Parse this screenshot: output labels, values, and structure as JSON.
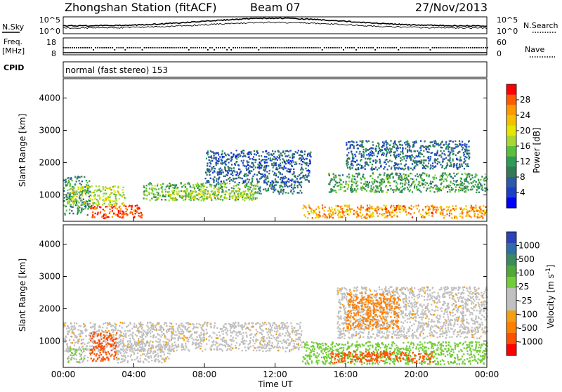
{
  "header": {
    "station": "Zhongshan Station (fitACF)",
    "beam": "Beam 07",
    "date": "27/Nov/2013"
  },
  "noise_panel": {
    "left_label": "N.Sky",
    "right_label": "N.Search",
    "ticks_left": [
      "10^5",
      "10^0"
    ],
    "ticks_right": [
      "10^5",
      "10^0"
    ]
  },
  "freq_panel": {
    "left_label_1": "Freq.",
    "left_label_2": "[MHz]",
    "right_label": "Nave",
    "ticks_left": [
      "18",
      "8"
    ],
    "ticks_right": [
      "60",
      "0"
    ]
  },
  "cpid": {
    "label": "CPID",
    "value": "normal (fast stereo) 153"
  },
  "power_colorbar": {
    "title": "Power [dB]",
    "ticks": [
      "28",
      "24",
      "20",
      "16",
      "12",
      "8",
      "4"
    ],
    "colors": [
      "#ff0000",
      "#ff5a00",
      "#ff9900",
      "#f2c200",
      "#e6e600",
      "#a8d830",
      "#5cbf3c",
      "#2e9c55",
      "#357a55",
      "#2a5aa8",
      "#1a40c8",
      "#0000ff"
    ]
  },
  "velocity_colorbar": {
    "title": "Velocity [m s^-1]",
    "ticks": [
      "1000",
      "500",
      "100",
      "25",
      "-25",
      "-100",
      "-500",
      "-1000"
    ],
    "colors": [
      "#2a44b8",
      "#2f6ea8",
      "#3a8a60",
      "#4fa838",
      "#74cc3a",
      "#c0c0c0",
      "#c0c0c0",
      "#f2a010",
      "#ff8000",
      "#ff5000",
      "#ff0000"
    ]
  },
  "chart_data": [
    {
      "type": "heatmap",
      "title": "Power",
      "ylabel": "Slant Range [km]",
      "ylim": [
        180,
        4600
      ],
      "yticks": [
        "1000",
        "2000",
        "3000",
        "4000"
      ],
      "colorbar_label": "Power [dB]",
      "colorbar_range": [
        0,
        32
      ],
      "echo_bands": [
        {
          "t0": 0.0,
          "t1": 1.5,
          "r0": 400,
          "r1": 1600,
          "value": 10
        },
        {
          "t0": 1.5,
          "t1": 4.5,
          "r0": 300,
          "r1": 700,
          "value": 30
        },
        {
          "t0": 0.2,
          "t1": 3.5,
          "r0": 700,
          "r1": 1300,
          "value": 18
        },
        {
          "t0": 4.5,
          "t1": 11.0,
          "r0": 850,
          "r1": 1400,
          "value": 14
        },
        {
          "t0": 6.0,
          "t1": 11.0,
          "r0": 900,
          "r1": 1150,
          "value": 19
        },
        {
          "t0": 11.0,
          "t1": 13.5,
          "r0": 1050,
          "r1": 1450,
          "value": 8
        },
        {
          "t0": 13.5,
          "t1": 24.0,
          "r0": 300,
          "r1": 700,
          "value": 26
        },
        {
          "t0": 15.0,
          "t1": 24.0,
          "r0": 1100,
          "r1": 1700,
          "value": 12
        },
        {
          "t0": 16.0,
          "t1": 23.0,
          "r0": 1800,
          "r1": 2700,
          "value": 7
        },
        {
          "t0": 8.0,
          "t1": 14.0,
          "r0": 1400,
          "r1": 2400,
          "value": 6
        }
      ]
    },
    {
      "type": "heatmap",
      "title": "Velocity",
      "xlabel": "Time UT",
      "ylabel": "Slant Range [km]",
      "ylim": [
        180,
        4600
      ],
      "yticks": [
        "1000",
        "2000",
        "3000",
        "4000"
      ],
      "xticks": [
        "00:00",
        "04:00",
        "08:00",
        "12:00",
        "16:00",
        "20:00",
        "00:00"
      ],
      "xlim_hours": [
        0,
        24
      ],
      "colorbar_label": "Velocity [m s^-1]",
      "echo_bands": [
        {
          "t0": 0.0,
          "t1": 13.5,
          "r0": 700,
          "r1": 1600,
          "value": 0
        },
        {
          "t0": 0.2,
          "t1": 1.5,
          "r0": 350,
          "r1": 800,
          "value": 100
        },
        {
          "t0": 1.5,
          "t1": 3.0,
          "r0": 400,
          "r1": 1300,
          "value": -300
        },
        {
          "t0": 3.0,
          "t1": 6.0,
          "r0": 350,
          "r1": 1000,
          "value": 0
        },
        {
          "t0": 13.5,
          "t1": 24.0,
          "r0": 300,
          "r1": 1000,
          "value": 150
        },
        {
          "t0": 15.0,
          "t1": 21.0,
          "r0": 350,
          "r1": 700,
          "value": -400
        },
        {
          "t0": 15.5,
          "t1": 24.0,
          "r0": 1100,
          "r1": 2700,
          "value": 0
        },
        {
          "t0": 16.0,
          "t1": 19.0,
          "r0": 1400,
          "r1": 2500,
          "value": -150
        }
      ]
    }
  ]
}
